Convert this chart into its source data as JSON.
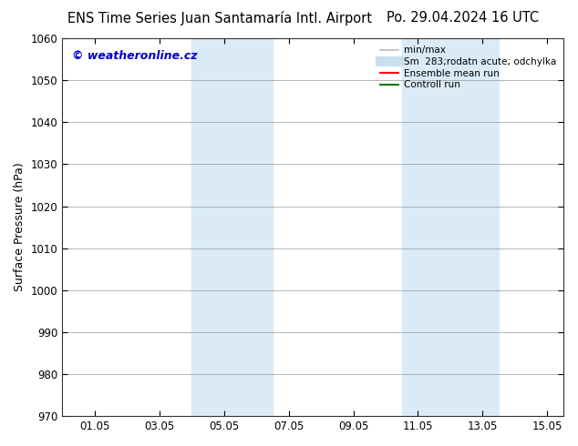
{
  "title_left": "ENS Time Series Juan Santamaría Intl. Airport",
  "title_right": "Po. 29.04.2024 16 UTC",
  "ylabel": "Surface Pressure (hPa)",
  "ylim": [
    970,
    1060
  ],
  "yticks": [
    970,
    980,
    990,
    1000,
    1010,
    1020,
    1030,
    1040,
    1050,
    1060
  ],
  "xtick_labels": [
    "01.05",
    "03.05",
    "05.05",
    "07.05",
    "09.05",
    "11.05",
    "13.05",
    "15.05"
  ],
  "xtick_positions": [
    1,
    3,
    5,
    7,
    9,
    11,
    13,
    15
  ],
  "xlim": [
    0,
    15.5
  ],
  "shaded_regions": [
    {
      "xmin": 4.0,
      "xmax": 5.5,
      "color": "#daeaf7"
    },
    {
      "xmin": 5.5,
      "xmax": 6.5,
      "color": "#daeaf7"
    },
    {
      "xmin": 10.5,
      "xmax": 11.8,
      "color": "#daeaf7"
    },
    {
      "xmin": 11.8,
      "xmax": 13.5,
      "color": "#daeaf7"
    }
  ],
  "watermark_text": "© weatheronline.cz",
  "watermark_color": "#0000cc",
  "legend_entries": [
    {
      "label": "min/max",
      "color": "#bbbbbb",
      "linewidth": 1.2
    },
    {
      "label": "Sm  283;rodatn acute; odchylka",
      "color": "#c8dff0",
      "linewidth": 8
    },
    {
      "label": "Ensemble mean run",
      "color": "#ff0000",
      "linewidth": 1.5
    },
    {
      "label": "Controll run",
      "color": "#007700",
      "linewidth": 1.5
    }
  ],
  "bg_color": "#ffffff",
  "plot_bg_color": "#ffffff",
  "grid_color": "#999999",
  "title_fontsize": 10.5,
  "axis_label_fontsize": 9,
  "tick_fontsize": 8.5,
  "watermark_fontsize": 9
}
